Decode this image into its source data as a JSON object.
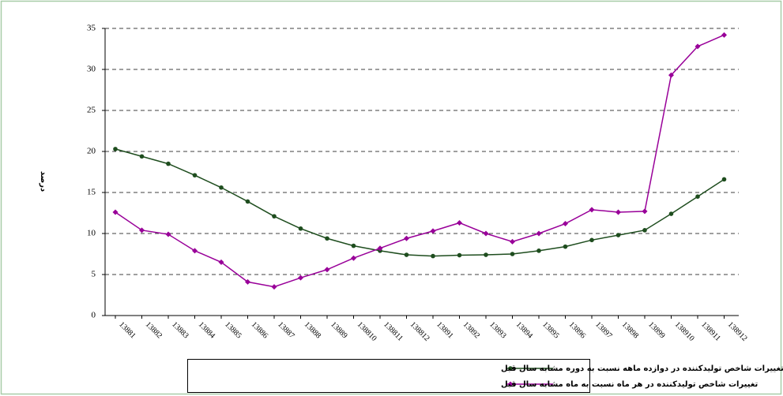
{
  "chart_data": {
    "type": "line",
    "ylabel": "درصد",
    "categories": [
      "13881",
      "13882",
      "13883",
      "13884",
      "13885",
      "13886",
      "13887",
      "13888",
      "13889",
      "138810",
      "138811",
      "138812",
      "13891",
      "13892",
      "13893",
      "13894",
      "13895",
      "13896",
      "13897",
      "13898",
      "13899",
      "138910",
      "138911",
      "138912"
    ],
    "series": [
      {
        "name": "تغییرات شاخص تولیدکننده  در دوازده ماهه نسبت به دوره مشابه سال قبل",
        "color": "#1e4d1e",
        "marker": "circle",
        "values": [
          20.3,
          19.4,
          18.5,
          17.1,
          15.6,
          13.9,
          12.1,
          10.6,
          9.4,
          8.5,
          7.9,
          7.4,
          7.25,
          7.35,
          7.4,
          7.5,
          7.9,
          8.4,
          9.2,
          9.8,
          10.4,
          12.4,
          14.5,
          16.6
        ]
      },
      {
        "name": "تغییرات شاخص تولیدکننده در هر ماه نسبت به ماه مشابه سال قبل",
        "color": "#990099",
        "marker": "diamond",
        "values": [
          12.6,
          10.4,
          9.9,
          7.9,
          6.5,
          4.1,
          3.5,
          4.6,
          5.6,
          7.0,
          8.2,
          9.4,
          10.3,
          11.3,
          10.0,
          9.0,
          10.0,
          11.2,
          12.9,
          12.6,
          12.7,
          29.3,
          32.8,
          34.2
        ]
      }
    ],
    "ylim": [
      0,
      35
    ],
    "yticks": [
      0,
      5,
      10,
      15,
      20,
      25,
      30,
      35
    ],
    "grid": true,
    "legend": "bottom"
  }
}
